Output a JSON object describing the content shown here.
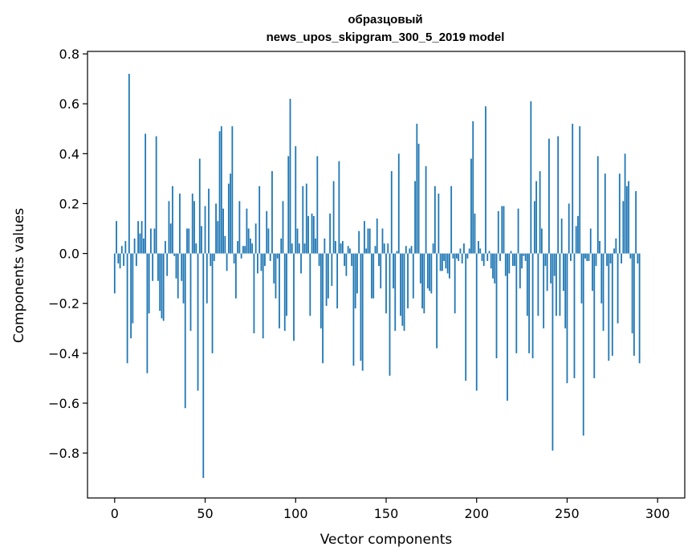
{
  "chart_data": {
    "type": "bar",
    "title_line1": "образцовый",
    "title_line2": "news_upos_skipgram_300_5_2019 model",
    "xlabel": "Vector components",
    "ylabel": "Components values",
    "xlim": [
      -15,
      315
    ],
    "ylim": [
      -0.98,
      0.81
    ],
    "x_ticks": [
      0,
      50,
      100,
      150,
      200,
      250,
      300
    ],
    "x_tick_labels": [
      "0",
      "50",
      "100",
      "150",
      "200",
      "250",
      "300"
    ],
    "y_ticks": [
      0.8,
      0.6,
      0.4,
      0.2,
      0.0,
      -0.2,
      -0.4,
      -0.6,
      -0.8
    ],
    "y_tick_labels": [
      "0.8",
      "0.6",
      "0.4",
      "0.2",
      "0.0",
      "−0.2",
      "−0.4",
      "−0.6",
      "−0.8"
    ],
    "bar_color": "#1f77b4",
    "values": [
      -0.16,
      0.13,
      -0.04,
      -0.06,
      0.03,
      -0.05,
      0.05,
      -0.44,
      0.72,
      -0.34,
      -0.28,
      0.06,
      -0.05,
      0.13,
      0.08,
      0.13,
      0.06,
      0.48,
      -0.48,
      -0.24,
      0.1,
      -0.11,
      0.1,
      0.47,
      -0.11,
      -0.23,
      -0.26,
      -0.27,
      0.05,
      -0.09,
      0.21,
      0.12,
      0.27,
      -0.01,
      -0.1,
      -0.18,
      0.24,
      -0.11,
      -0.2,
      -0.62,
      0.1,
      0.1,
      -0.31,
      0.24,
      0.21,
      0.04,
      -0.55,
      0.38,
      0.11,
      -0.9,
      0.19,
      -0.2,
      0.26,
      -0.05,
      -0.4,
      -0.03,
      0.2,
      0.13,
      0.49,
      0.51,
      0.18,
      0.07,
      -0.07,
      0.28,
      0.32,
      0.51,
      -0.04,
      -0.18,
      0.05,
      0.21,
      -0.02,
      0.03,
      0.03,
      0.18,
      0.1,
      0.06,
      0.04,
      -0.32,
      0.12,
      -0.08,
      0.27,
      -0.07,
      -0.34,
      -0.05,
      0.17,
      0.1,
      -0.03,
      0.33,
      -0.12,
      -0.18,
      -0.02,
      -0.3,
      0.06,
      0.21,
      -0.31,
      -0.25,
      0.39,
      0.62,
      0.04,
      -0.35,
      0.43,
      0.1,
      0.04,
      -0.08,
      0.27,
      0.04,
      0.28,
      0.15,
      -0.25,
      0.16,
      0.15,
      0.06,
      0.39,
      -0.05,
      -0.3,
      -0.44,
      0.06,
      -0.21,
      -0.18,
      0.16,
      -0.13,
      0.29,
      0.05,
      -0.22,
      0.37,
      0.04,
      0.05,
      -0.05,
      -0.09,
      0.03,
      0.02,
      -0.05,
      -0.45,
      -0.22,
      -0.16,
      0.09,
      -0.43,
      -0.47,
      0.13,
      0.02,
      0.1,
      0.1,
      -0.18,
      -0.18,
      0.03,
      0.14,
      -0.05,
      -0.14,
      0.1,
      0.04,
      -0.24,
      0.04,
      -0.49,
      0.33,
      -0.14,
      -0.31,
      0.01,
      0.4,
      -0.25,
      -0.29,
      -0.31,
      0.03,
      -0.22,
      0.02,
      0.03,
      -0.18,
      0.29,
      0.52,
      0.44,
      -0.12,
      -0.22,
      -0.24,
      0.35,
      -0.14,
      -0.15,
      -0.16,
      0.04,
      0.27,
      -0.38,
      0.24,
      -0.07,
      -0.07,
      -0.03,
      -0.06,
      -0.08,
      -0.1,
      0.27,
      -0.02,
      -0.24,
      -0.02,
      -0.03,
      0.02,
      -0.04,
      0.04,
      -0.51,
      -0.02,
      0.02,
      0.38,
      0.53,
      0.16,
      -0.55,
      0.05,
      0.02,
      -0.03,
      -0.05,
      0.59,
      -0.03,
      0.01,
      -0.06,
      -0.1,
      -0.12,
      -0.42,
      0.17,
      -0.03,
      0.19,
      0.19,
      -0.09,
      -0.59,
      -0.08,
      0.01,
      -0.05,
      -0.05,
      -0.4,
      0.18,
      -0.14,
      -0.06,
      -0.01,
      -0.03,
      -0.25,
      -0.4,
      0.61,
      -0.42,
      0.21,
      0.29,
      -0.25,
      0.33,
      0.1,
      -0.3,
      -0.05,
      -0.15,
      0.46,
      -0.12,
      -0.79,
      -0.09,
      -0.25,
      0.47,
      -0.25,
      0.14,
      -0.15,
      -0.3,
      -0.52,
      0.2,
      -0.03,
      0.52,
      -0.5,
      0.11,
      0.15,
      0.51,
      -0.2,
      -0.73,
      -0.02,
      -0.03,
      -0.03,
      0.1,
      -0.15,
      -0.5,
      -0.05,
      0.39,
      0.05,
      -0.2,
      -0.31,
      0.32,
      -0.05,
      -0.43,
      -0.04,
      -0.41,
      0.02,
      0.06,
      -0.28,
      0.32,
      -0.04,
      0.21,
      0.4,
      0.27,
      0.29,
      -0.02,
      -0.32,
      -0.41,
      0.25,
      -0.04,
      -0.44
    ]
  }
}
